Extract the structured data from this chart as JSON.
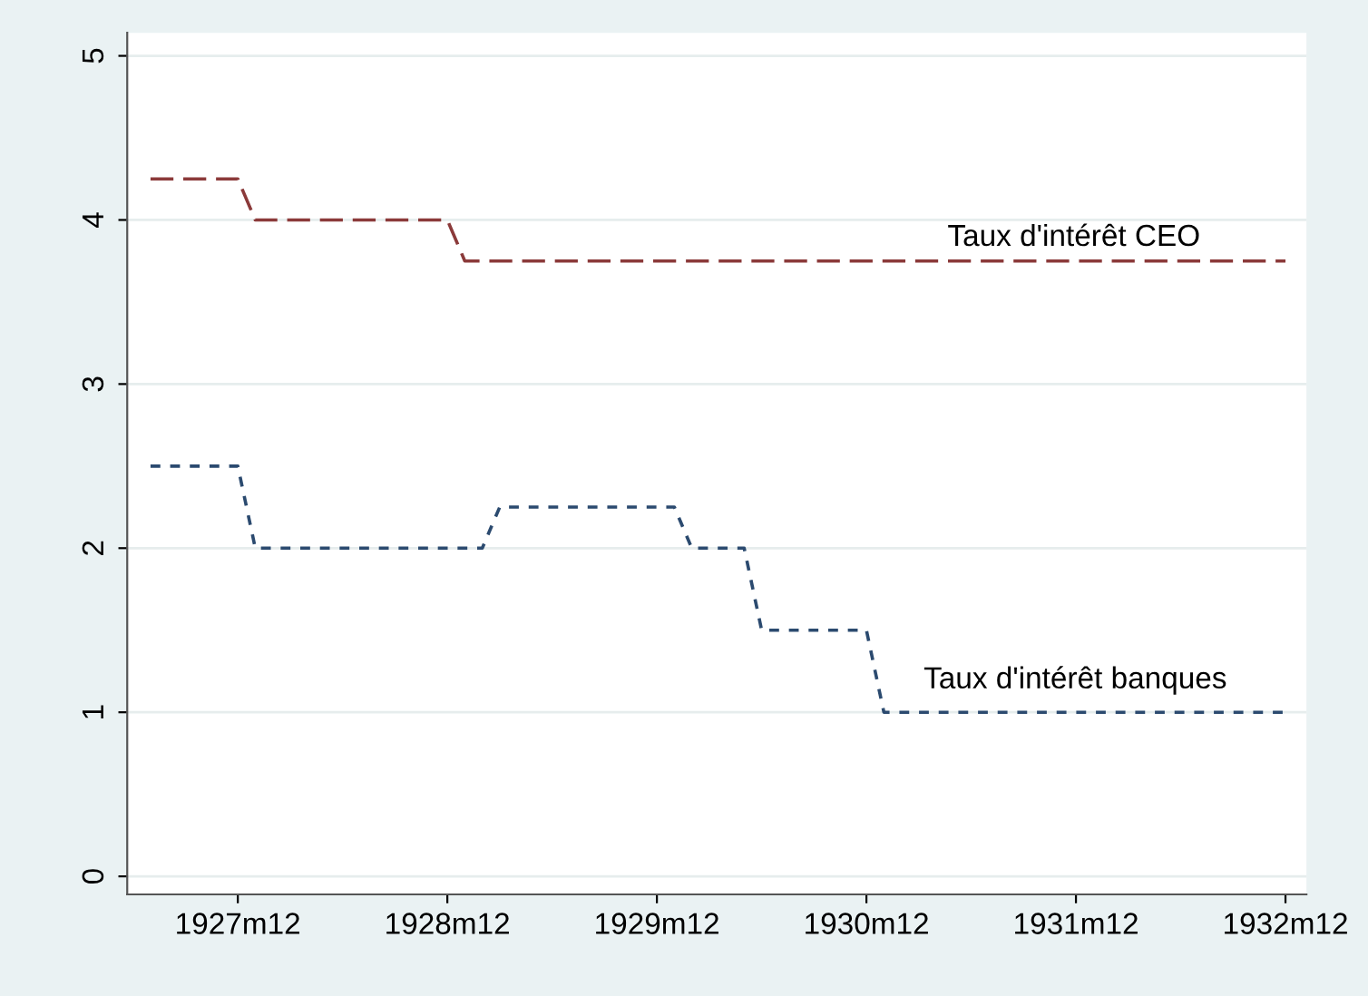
{
  "chart_data": {
    "type": "line",
    "series": [
      {
        "color": "#8b3a3a",
        "line_style": "dashed",
        "x": [
          "1927-07",
          "1927-12",
          "1928-01",
          "1928-12",
          "1929-01",
          "1932-12"
        ],
        "values": [
          4.25,
          4.25,
          4,
          4,
          3.75,
          3.75
        ]
      },
      {
        "color": "#2b4a6f",
        "line_style": "dotted",
        "x": [
          "1927-07",
          "1927-12",
          "1928-01",
          "1929-02",
          "1929-03",
          "1930-01",
          "1930-02",
          "1930-05",
          "1930-06",
          "1930-12",
          "1931-01",
          "1932-12"
        ],
        "values": [
          2.5,
          2.5,
          2,
          2,
          2.25,
          2.25,
          2,
          2,
          1.5,
          1.5,
          1,
          1
        ]
      }
    ],
    "xlim": [
      "1927-05-21",
      "1933-01-07"
    ],
    "xticks": [
      {
        "value": "1927-12",
        "label": "1927m12"
      },
      {
        "value": "1928-12",
        "label": "1928m12"
      },
      {
        "value": "1929-12",
        "label": "1929m12"
      },
      {
        "value": "1930-12",
        "label": "1930m12"
      },
      {
        "value": "1931-12",
        "label": "1931m12"
      },
      {
        "value": "1932-12",
        "label": "1932m12"
      }
    ],
    "ylim": [
      -0.11,
      5.14
    ],
    "yticks": [
      0,
      1,
      2,
      3,
      4,
      5
    ],
    "grid": "y",
    "annotations": [
      "Taux d'intérêt CEO",
      "Taux d'intérêt banques"
    ]
  }
}
